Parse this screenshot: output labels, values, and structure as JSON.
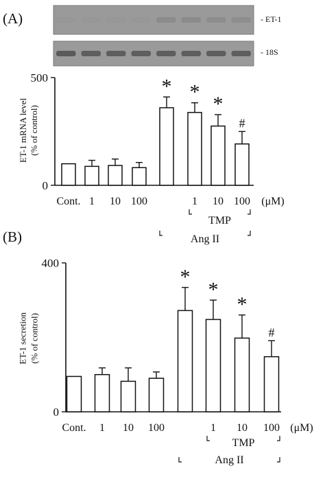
{
  "panels": [
    {
      "panel_label": "(A)",
      "blots": [
        {
          "label": "- ET-1",
          "bands": [
            0.05,
            0.05,
            0.05,
            0.05,
            0.3,
            0.3,
            0.28,
            0.25
          ],
          "band_color": "#6a6a6a"
        },
        {
          "label": "- 18S",
          "bands": [
            0.7,
            0.65,
            0.65,
            0.65,
            0.65,
            0.65,
            0.65,
            0.65
          ],
          "band_color": "#3e3e3e"
        }
      ]
    },
    {
      "panel_label": "(B)",
      "blots": []
    }
  ],
  "chart_data": [
    {
      "type": "bar",
      "ylabel": "ET-1 mRNA level (% of control)",
      "ylabel_lines": [
        "ET-1 mRNA level",
        "(% of control)"
      ],
      "ylim": [
        0,
        500
      ],
      "yticks": [
        "0",
        "500"
      ],
      "yticks_values": [
        0,
        500
      ],
      "categories": [
        "Cont.",
        "1",
        "10",
        "100",
        "",
        "1",
        "10",
        "100"
      ],
      "unit": "(μM)",
      "values": [
        100,
        88,
        92,
        82,
        360,
        338,
        275,
        192
      ],
      "errors": [
        0,
        28,
        30,
        24,
        50,
        45,
        53,
        58
      ],
      "markers": [
        "",
        "",
        "",
        "",
        "*",
        "*",
        "*",
        "#"
      ],
      "group_labels": {
        "tmp": "TMP",
        "ang": "Ang II"
      }
    },
    {
      "type": "bar",
      "ylabel": "ET-1 secretion (% of control)",
      "ylabel_lines": [
        "ET-1 secretion",
        "(% of control)"
      ],
      "ylim": [
        0,
        400
      ],
      "yticks": [
        "0",
        "400"
      ],
      "yticks_values": [
        0,
        400
      ],
      "categories": [
        "Cont.",
        "1",
        "10",
        "100",
        "",
        "1",
        "10",
        "100"
      ],
      "unit": "(μM)",
      "values": [
        95,
        100,
        82,
        90,
        272,
        248,
        198,
        148
      ],
      "errors": [
        0,
        18,
        36,
        17,
        62,
        52,
        62,
        43
      ],
      "markers": [
        "",
        "",
        "",
        "",
        "*",
        "*",
        "*",
        "#"
      ],
      "group_labels": {
        "tmp": "TMP",
        "ang": "Ang II"
      }
    }
  ]
}
